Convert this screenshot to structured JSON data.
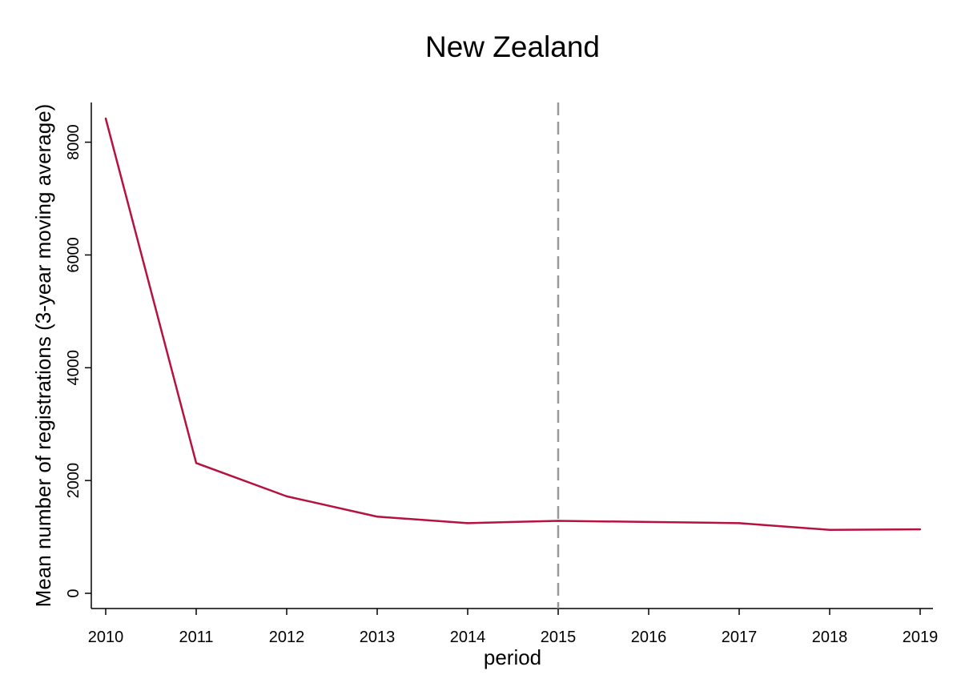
{
  "chart_data": {
    "type": "line",
    "title": "New Zealand",
    "xlabel": "period",
    "ylabel": "Mean number of registrations (3-year moving average)",
    "x": [
      2010,
      2011,
      2012,
      2013,
      2014,
      2015,
      2016,
      2017,
      2018,
      2019
    ],
    "series": [
      {
        "values": [
          8420,
          2310,
          1720,
          1360,
          1245,
          1285,
          1265,
          1245,
          1125,
          1135
        ],
        "color": "#b5123f"
      }
    ],
    "xticks": [
      2010,
      2011,
      2012,
      2013,
      2014,
      2015,
      2016,
      2017,
      2018,
      2019
    ],
    "yticks": [
      0,
      2000,
      4000,
      6000,
      8000
    ],
    "xlim": [
      2010,
      2019
    ],
    "ylim": [
      0,
      8420
    ],
    "reference_line": {
      "x": 2015,
      "style": "dashed",
      "color": "#999999"
    },
    "grid": false,
    "legend": "none"
  }
}
